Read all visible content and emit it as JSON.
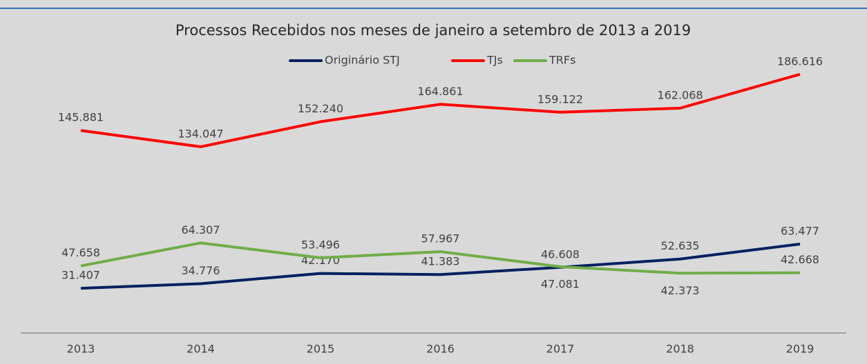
{
  "chart_data": {
    "type": "line",
    "title": "Processos Recebidos nos meses de janeiro a setembro de 2013 a 2019",
    "categories": [
      "2013",
      "2014",
      "2015",
      "2016",
      "2017",
      "2018",
      "2019"
    ],
    "series": [
      {
        "name": "Originário STJ",
        "color": "#002060",
        "values": [
          31407,
          34776,
          42170,
          41383,
          46608,
          52635,
          63477
        ],
        "value_labels": [
          "31.407",
          "34.776",
          "42.170",
          "41.383",
          "46.608",
          "52.635",
          "63.477"
        ]
      },
      {
        "name": "TJs",
        "color": "#ff0000",
        "values": [
          145881,
          134047,
          152240,
          164861,
          159122,
          162068,
          186616
        ],
        "value_labels": [
          "145.881",
          "134.047",
          "152.240",
          "164.861",
          "159.122",
          "162.068",
          "186.616"
        ]
      },
      {
        "name": "TRFs",
        "color": "#70ad47",
        "values": [
          47658,
          64307,
          53496,
          57967,
          47081,
          42373,
          42668
        ],
        "value_labels": [
          "47.658",
          "64.307",
          "53.496",
          "57.967",
          "47.081",
          "42.373",
          "42.668"
        ]
      }
    ],
    "ylim": [
      0,
      200000
    ],
    "legend": "top"
  }
}
